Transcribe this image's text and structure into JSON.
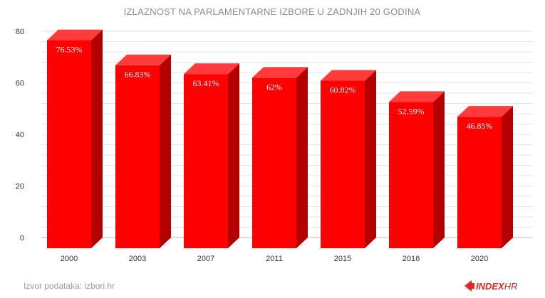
{
  "chart_data": {
    "type": "bar",
    "title": "IZLAZNOST NA PARLAMENTARNE IZBORE U ZADNJIH 20 GODINA",
    "categories": [
      "2000",
      "2003",
      "2007",
      "2011",
      "2015",
      "2016",
      "2020"
    ],
    "values": [
      76.53,
      66.83,
      63.41,
      62,
      60.82,
      52.59,
      46.85
    ],
    "data_labels": [
      "76.53%",
      "66.83%",
      "63.41%",
      "62%",
      "60.82%",
      "52.59%",
      "46.85%"
    ],
    "y_ticks": [
      0,
      20,
      40,
      60,
      80
    ],
    "ylim": [
      0,
      80
    ],
    "grid": true,
    "legend": "none",
    "style": "3d-bar",
    "colors": {
      "bar_front": "#ff0000",
      "bar_top": "#ff3b3b",
      "bar_side": "#b50000",
      "grid": "#e6e6e6",
      "baseline": "#b5b5b5"
    }
  },
  "footer": {
    "source": "Izvor podataka: izbori.hr",
    "brand_strong": "INDEX",
    "brand_light": "HR",
    "brand_color": "#e1261c"
  }
}
